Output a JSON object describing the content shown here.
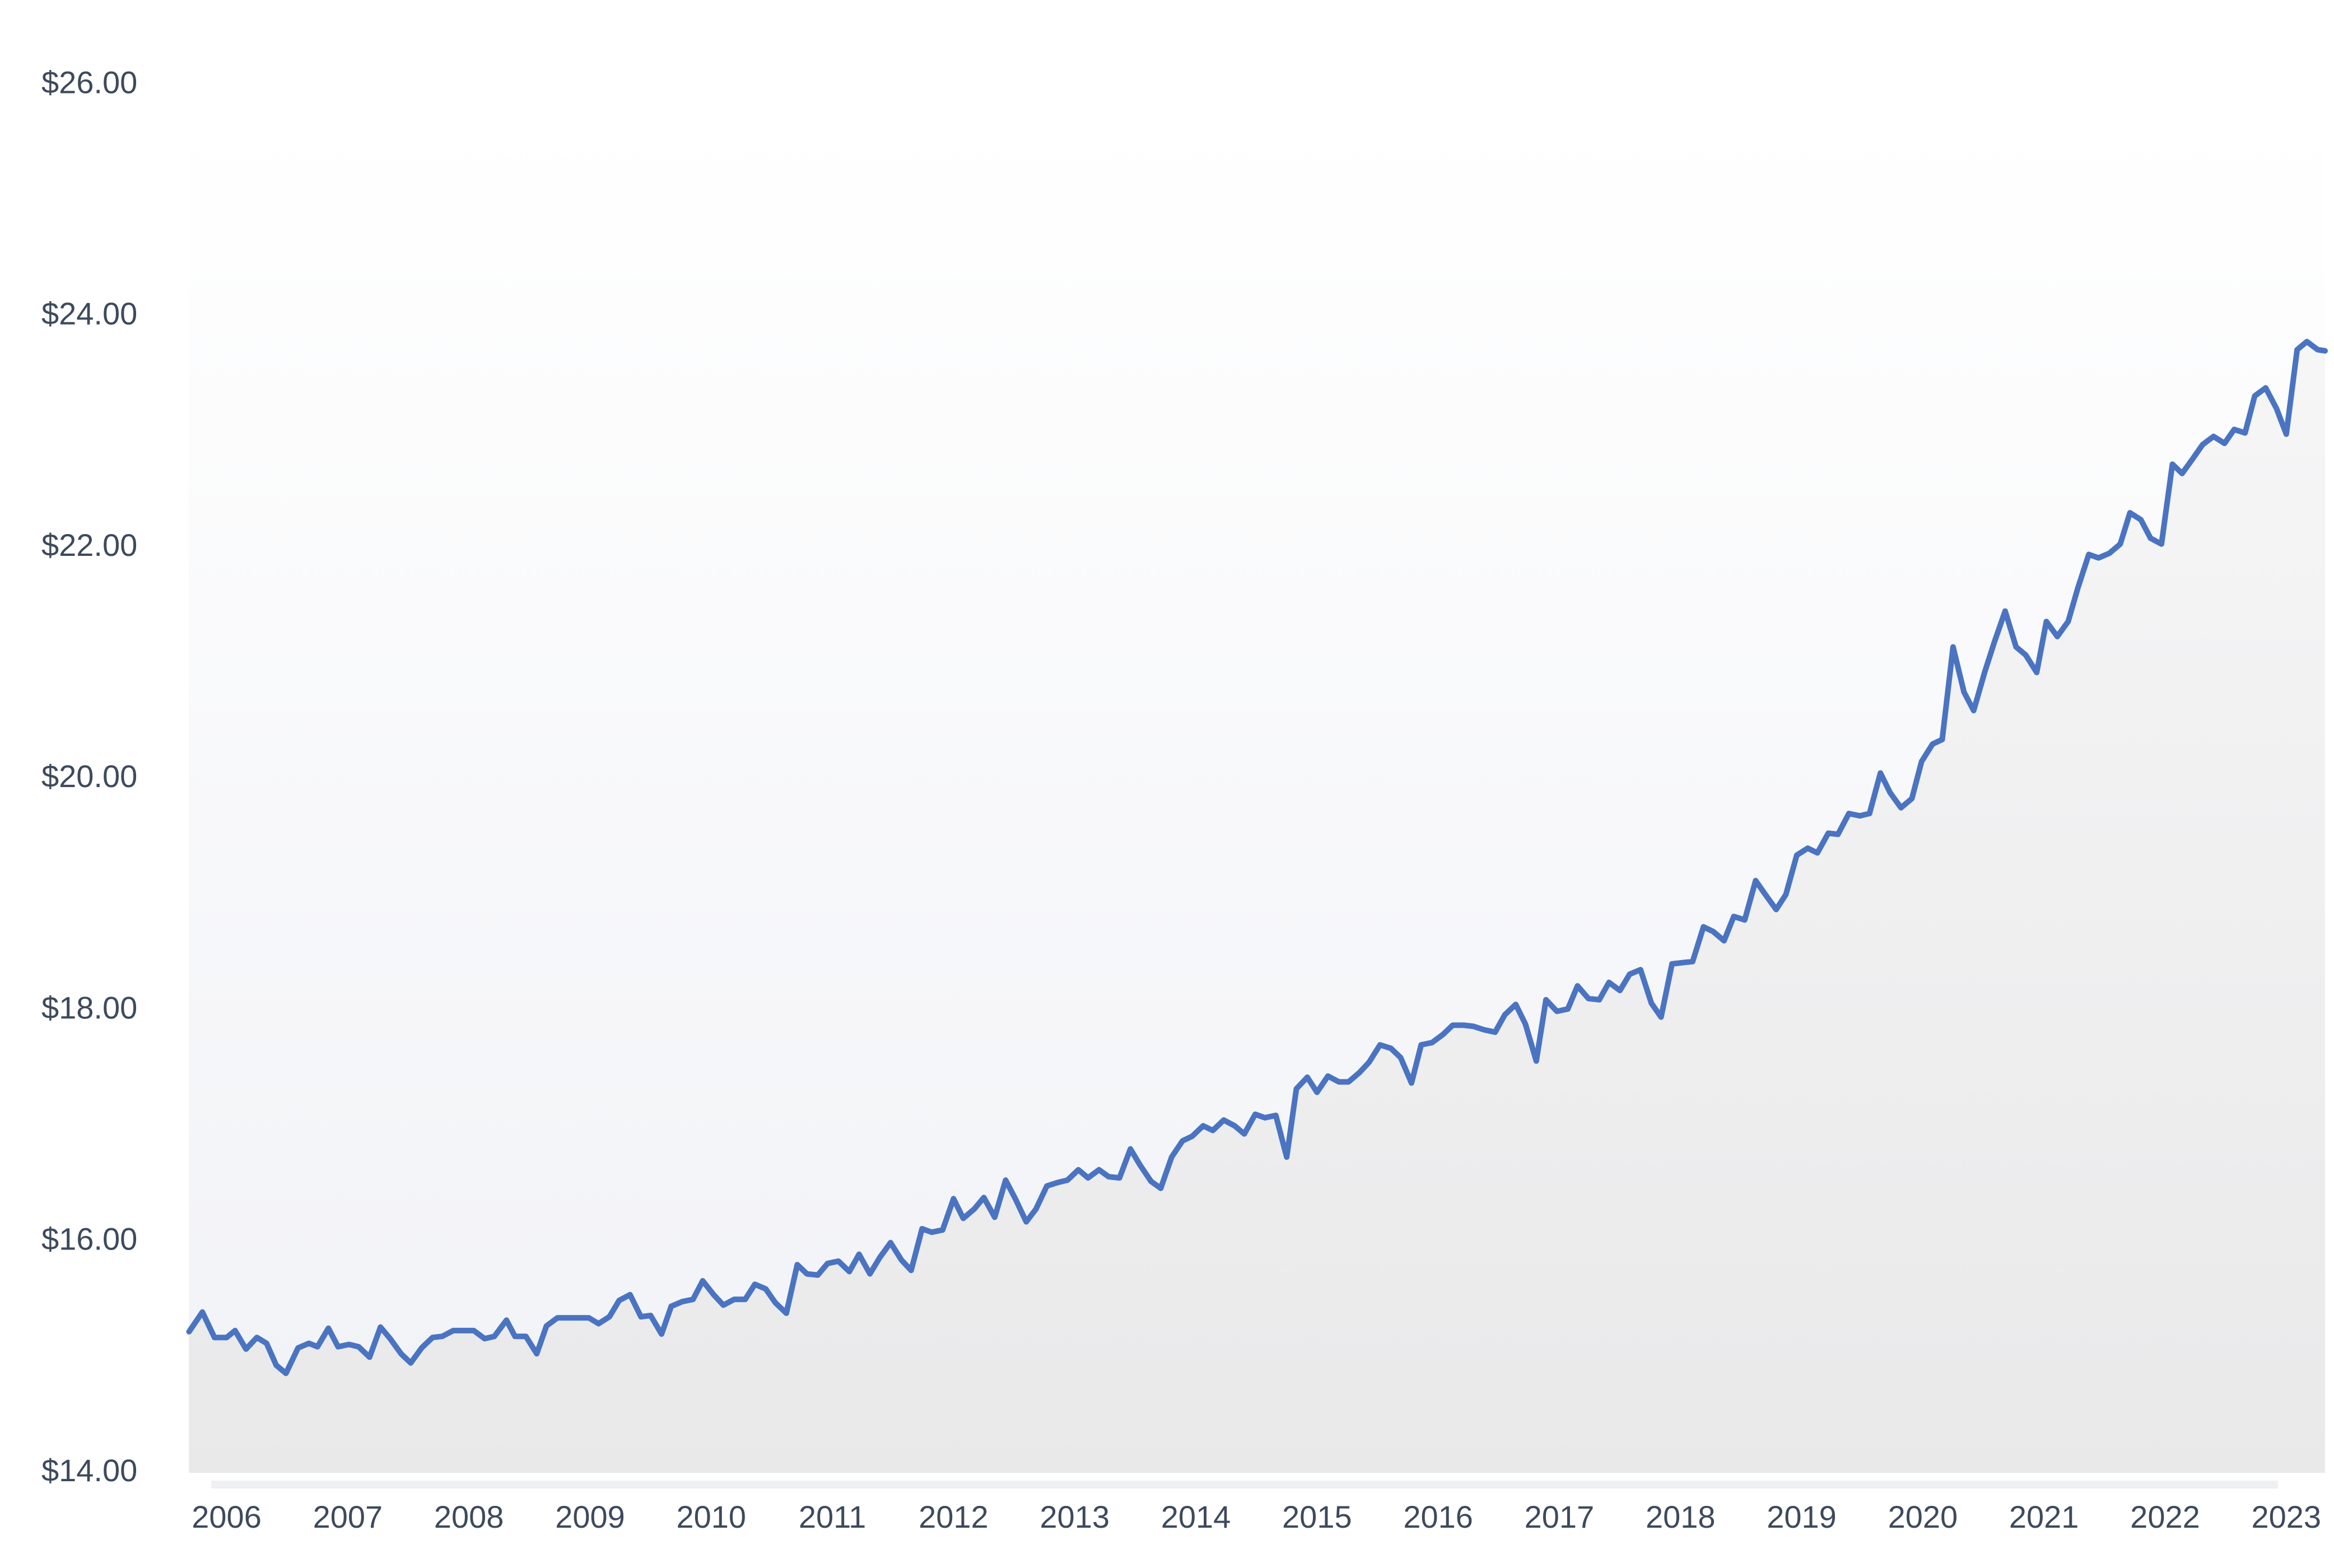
{
  "chart_data": {
    "type": "line",
    "x": [
      2005.69,
      2005.8,
      2005.9,
      2006.0,
      2006.07,
      2006.16,
      2006.25,
      2006.33,
      2006.41,
      2006.49,
      2006.59,
      2006.68,
      2006.75,
      2006.84,
      2006.92,
      2007.01,
      2007.09,
      2007.18,
      2007.27,
      2007.35,
      2007.44,
      2007.52,
      2007.61,
      2007.7,
      2007.78,
      2007.87,
      2007.95,
      2008.04,
      2008.13,
      2008.21,
      2008.31,
      2008.38,
      2008.47,
      2008.56,
      2008.64,
      2008.73,
      2008.81,
      2008.9,
      2008.99,
      2009.07,
      2009.16,
      2009.24,
      2009.33,
      2009.42,
      2009.5,
      2009.59,
      2009.67,
      2009.76,
      2009.85,
      2009.93,
      2010.02,
      2010.1,
      2010.19,
      2010.28,
      2010.36,
      2010.45,
      2010.53,
      2010.62,
      2010.71,
      2010.79,
      2010.88,
      2010.96,
      2011.05,
      2011.14,
      2011.22,
      2011.31,
      2011.39,
      2011.48,
      2011.57,
      2011.65,
      2011.74,
      2011.82,
      2011.91,
      2012.0,
      2012.08,
      2012.17,
      2012.25,
      2012.34,
      2012.43,
      2012.51,
      2012.6,
      2012.68,
      2012.77,
      2012.86,
      2012.94,
      2013.03,
      2013.11,
      2013.2,
      2013.28,
      2013.37,
      2013.46,
      2013.54,
      2013.63,
      2013.71,
      2013.8,
      2013.89,
      2013.97,
      2014.06,
      2014.14,
      2014.23,
      2014.32,
      2014.4,
      2014.49,
      2014.57,
      2014.66,
      2014.75,
      2014.83,
      2014.92,
      2015.0,
      2015.09,
      2015.18,
      2015.26,
      2015.35,
      2015.43,
      2015.52,
      2015.61,
      2015.69,
      2015.78,
      2015.86,
      2015.95,
      2016.04,
      2016.12,
      2016.21,
      2016.29,
      2016.38,
      2016.47,
      2016.55,
      2016.64,
      2016.72,
      2016.81,
      2016.89,
      2016.98,
      2017.07,
      2017.15,
      2017.24,
      2017.33,
      2017.41,
      2017.5,
      2017.58,
      2017.67,
      2017.76,
      2017.84,
      2017.93,
      2018.01,
      2018.1,
      2018.19,
      2018.27,
      2018.36,
      2018.44,
      2018.53,
      2018.62,
      2018.7,
      2018.79,
      2018.87,
      2018.96,
      2019.05,
      2019.13,
      2019.22,
      2019.3,
      2019.39,
      2019.48,
      2019.56,
      2019.65,
      2019.73,
      2019.82,
      2019.91,
      2019.99,
      2020.08,
      2020.16,
      2020.25,
      2020.34,
      2020.42,
      2020.51,
      2020.59,
      2020.68,
      2020.77,
      2020.85,
      2020.94,
      2021.02,
      2021.11,
      2021.2,
      2021.28,
      2021.37,
      2021.45,
      2021.54,
      2021.63,
      2021.71,
      2021.8,
      2021.88,
      2021.97,
      2022.06,
      2022.14,
      2022.23,
      2022.31,
      2022.4,
      2022.49,
      2022.57,
      2022.66,
      2022.74,
      2022.83,
      2022.92,
      2023.0,
      2023.09,
      2023.17,
      2023.26,
      2023.32
    ],
    "series": [
      {
        "color": "#4a74c2",
        "values": [
          15.22,
          15.39,
          15.17,
          15.17,
          15.23,
          15.07,
          15.17,
          15.12,
          14.93,
          14.86,
          15.08,
          15.12,
          15.09,
          15.25,
          15.09,
          15.11,
          15.09,
          15.0,
          15.26,
          15.16,
          15.03,
          14.95,
          15.08,
          15.17,
          15.18,
          15.23,
          15.23,
          15.23,
          15.16,
          15.18,
          15.32,
          15.18,
          15.18,
          15.03,
          15.27,
          15.34,
          15.34,
          15.34,
          15.34,
          15.29,
          15.35,
          15.49,
          15.54,
          15.35,
          15.36,
          15.2,
          15.44,
          15.48,
          15.5,
          15.66,
          15.54,
          15.45,
          15.5,
          15.5,
          15.63,
          15.59,
          15.47,
          15.38,
          15.8,
          15.72,
          15.71,
          15.81,
          15.83,
          15.74,
          15.89,
          15.72,
          15.86,
          15.99,
          15.84,
          15.75,
          16.11,
          16.08,
          16.1,
          16.37,
          16.2,
          16.28,
          16.38,
          16.21,
          16.53,
          16.37,
          16.17,
          16.28,
          16.48,
          16.51,
          16.53,
          16.62,
          16.55,
          16.62,
          16.56,
          16.55,
          16.8,
          16.66,
          16.52,
          16.46,
          16.73,
          16.87,
          16.91,
          17.0,
          16.96,
          17.05,
          17.0,
          16.93,
          17.1,
          17.07,
          17.09,
          16.73,
          17.32,
          17.42,
          17.29,
          17.43,
          17.38,
          17.38,
          17.46,
          17.55,
          17.7,
          17.67,
          17.59,
          17.37,
          17.7,
          17.72,
          17.79,
          17.87,
          17.87,
          17.86,
          17.83,
          17.81,
          17.96,
          18.05,
          17.88,
          17.56,
          18.09,
          17.99,
          18.01,
          18.21,
          18.1,
          18.09,
          18.24,
          18.17,
          18.31,
          18.35,
          18.06,
          17.94,
          18.4,
          18.41,
          18.42,
          18.72,
          18.68,
          18.6,
          18.81,
          18.78,
          19.12,
          19.0,
          18.87,
          19.0,
          19.34,
          19.4,
          19.36,
          19.53,
          19.52,
          19.7,
          19.68,
          19.7,
          20.05,
          19.88,
          19.75,
          19.83,
          20.15,
          20.3,
          20.34,
          21.14,
          20.75,
          20.59,
          20.92,
          21.18,
          21.45,
          21.14,
          21.07,
          20.92,
          21.36,
          21.23,
          21.36,
          21.65,
          21.94,
          21.91,
          21.95,
          22.03,
          22.3,
          22.24,
          22.08,
          22.03,
          22.72,
          22.64,
          22.77,
          22.89,
          22.96,
          22.9,
          23.02,
          22.99,
          23.31,
          23.38,
          23.2,
          22.98,
          23.71,
          23.78,
          23.71,
          23.7
        ]
      }
    ],
    "xlim": [
      2005.69,
      2023.32
    ],
    "xticks": [
      2006,
      2007,
      2008,
      2009,
      2010,
      2011,
      2012,
      2013,
      2014,
      2015,
      2016,
      2017,
      2018,
      2019,
      2020,
      2021,
      2022,
      2023
    ],
    "ylim": [
      14,
      26
    ],
    "yticks": [
      {
        "value": 14,
        "label": "$14.00"
      },
      {
        "value": 16,
        "label": "$16.00"
      },
      {
        "value": 18,
        "label": "$18.00"
      },
      {
        "value": 20,
        "label": "$20.00"
      },
      {
        "value": 22,
        "label": "$22.00"
      },
      {
        "value": 24,
        "label": "$24.00"
      },
      {
        "value": 26,
        "label": "$26.00"
      }
    ],
    "grid": false
  }
}
